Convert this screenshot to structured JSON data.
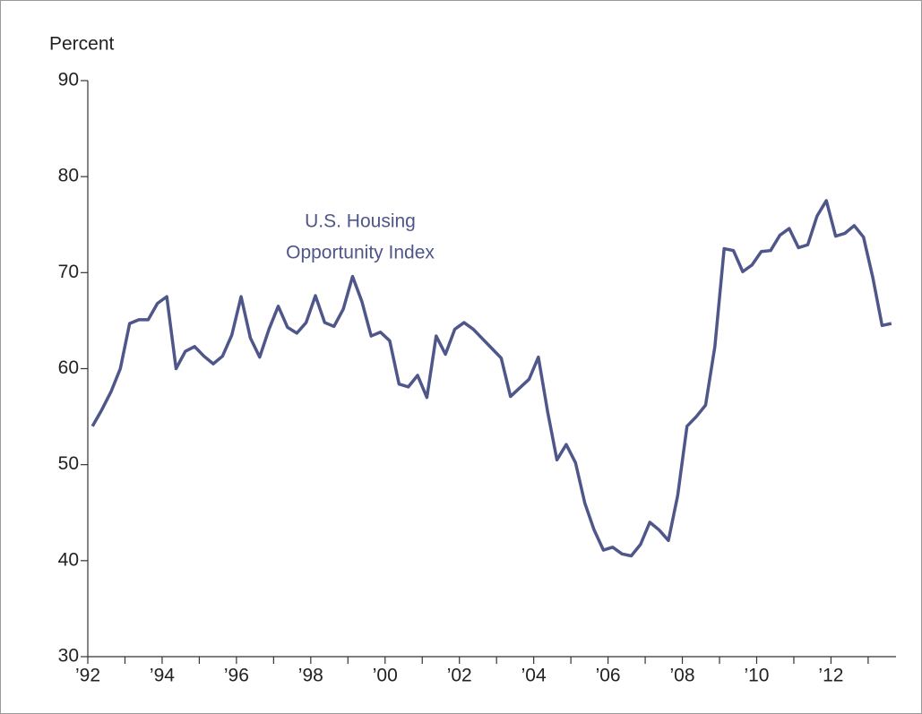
{
  "chart_data": {
    "type": "line",
    "y_axis_label": "Percent",
    "annotation": [
      "U.S. Housing",
      "Opportunity Index"
    ],
    "color": "#4f5689",
    "x": [
      1992.125,
      1992.375,
      1992.625,
      1992.875,
      1993.125,
      1993.375,
      1993.625,
      1993.875,
      1994.125,
      1994.375,
      1994.625,
      1994.875,
      1995.125,
      1995.375,
      1995.625,
      1995.875,
      1996.125,
      1996.375,
      1996.625,
      1996.875,
      1997.125,
      1997.375,
      1997.625,
      1997.875,
      1998.125,
      1998.375,
      1998.625,
      1998.875,
      1999.125,
      1999.375,
      1999.625,
      1999.875,
      2000.125,
      2000.375,
      2000.625,
      2000.875,
      2001.125,
      2001.375,
      2001.625,
      2001.875,
      2002.125,
      2002.375,
      2002.625,
      2002.875,
      2003.125,
      2003.375,
      2003.625,
      2003.875,
      2004.125,
      2004.375,
      2004.625,
      2004.875,
      2005.125,
      2005.375,
      2005.625,
      2005.875,
      2006.125,
      2006.375,
      2006.625,
      2006.875,
      2007.125,
      2007.375,
      2007.625,
      2007.875,
      2008.125,
      2008.375,
      2008.625,
      2008.875,
      2009.125,
      2009.375,
      2009.625,
      2009.875,
      2010.125,
      2010.375,
      2010.625,
      2010.875,
      2011.125,
      2011.375,
      2011.625,
      2011.875,
      2012.125,
      2012.375,
      2012.625,
      2012.875,
      2013.125,
      2013.375,
      2013.625
    ],
    "values": [
      54,
      55.7,
      57.6,
      60,
      64.7,
      65.1,
      65.1,
      66.8,
      67.5,
      60,
      61.8,
      62.3,
      61.3,
      60.5,
      61.3,
      63.5,
      67.5,
      63.2,
      61.2,
      64.1,
      66.5,
      64.3,
      63.7,
      64.8,
      67.6,
      64.8,
      64.4,
      66.2,
      69.6,
      67,
      63.4,
      63.8,
      62.9,
      58.4,
      58.1,
      59.3,
      57,
      63.4,
      61.5,
      64.1,
      64.8,
      64.1,
      63.1,
      62.1,
      61.1,
      57.1,
      58,
      58.9,
      61.2,
      55.5,
      50.5,
      52.1,
      50.2,
      46,
      43.2,
      41.1,
      41.4,
      40.7,
      40.5,
      41.7,
      44,
      43.2,
      42.1,
      46.8,
      54,
      55,
      56.2,
      62.3,
      72.5,
      72.3,
      70.1,
      70.8,
      72.2,
      72.3,
      73.9,
      74.6,
      72.6,
      72.9,
      75.9,
      77.5,
      73.8,
      74.1,
      74.9,
      73.7,
      69.5,
      64.5,
      64.7
    ],
    "xlim": [
      1992,
      2013.75
    ],
    "xticks": [
      {
        "value": 1992,
        "label": "’92"
      },
      {
        "value": 1994,
        "label": "’94"
      },
      {
        "value": 1996,
        "label": "’96"
      },
      {
        "value": 1998,
        "label": "’98"
      },
      {
        "value": 2000,
        "label": "’00"
      },
      {
        "value": 2002,
        "label": "’02"
      },
      {
        "value": 2004,
        "label": "’04"
      },
      {
        "value": 2006,
        "label": "’06"
      },
      {
        "value": 2008,
        "label": "’08"
      },
      {
        "value": 2010,
        "label": "’10"
      },
      {
        "value": 2012,
        "label": "’12"
      }
    ],
    "xminor_ticks": [
      1993,
      1995,
      1997,
      1999,
      2001,
      2003,
      2005,
      2007,
      2009,
      2011,
      2013
    ],
    "ylim": [
      30,
      90
    ],
    "yticks": [
      30,
      40,
      50,
      60,
      70,
      80,
      90
    ]
  }
}
